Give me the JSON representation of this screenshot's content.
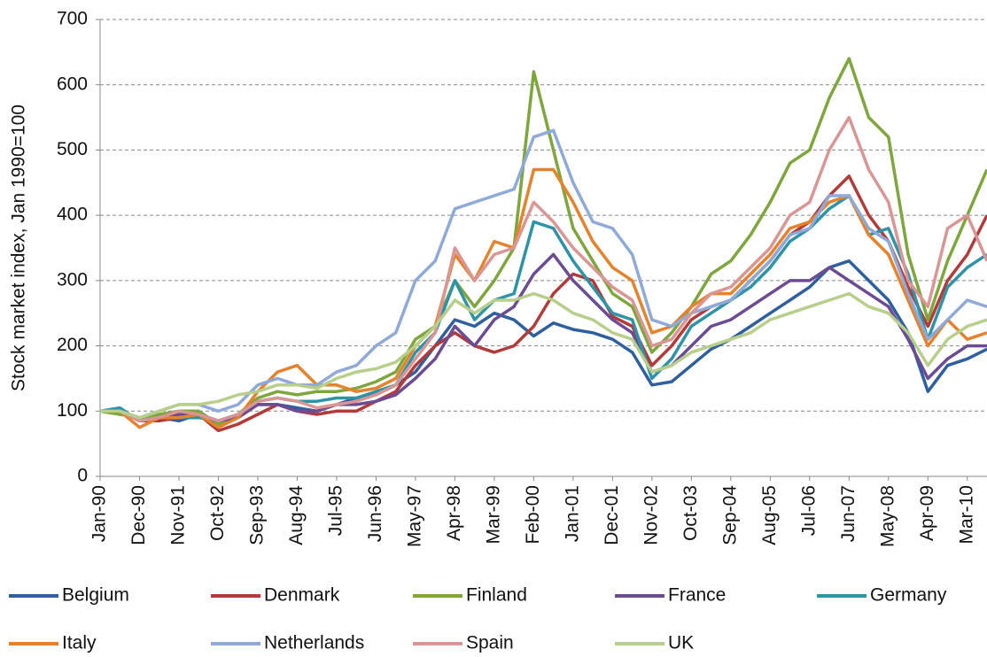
{
  "chart_data": {
    "type": "line",
    "y_label": "Stock market index, Jan 1990=100",
    "categories": [
      "Jan-90",
      null,
      "Dec-90",
      null,
      "Nov-91",
      null,
      "Oct-92",
      null,
      "Sep-93",
      null,
      "Aug-94",
      null,
      "Jul-95",
      null,
      "Jun-96",
      null,
      "May-97",
      null,
      "Apr-98",
      null,
      "Mar-99",
      null,
      "Feb-00",
      null,
      "Jan-01",
      null,
      "Dec-01",
      null,
      "Nov-02",
      null,
      "Oct-03",
      null,
      "Sep-04",
      null,
      "Aug-05",
      null,
      "Jul-06",
      null,
      "Jun-07",
      null,
      "May-08",
      null,
      "Apr-09",
      null,
      "Mar-10",
      null
    ],
    "ylim": [
      0,
      700
    ],
    "yticks": [
      0,
      100,
      200,
      300,
      400,
      500,
      600,
      700
    ],
    "grid": true,
    "legend": "bottom",
    "series": [
      {
        "name": "Belgium",
        "color": "#2f5f9f",
        "values": [
          100,
          100,
          85,
          90,
          85,
          95,
          85,
          95,
          110,
          110,
          105,
          100,
          110,
          120,
          125,
          140,
          160,
          200,
          240,
          230,
          250,
          240,
          215,
          235,
          225,
          220,
          210,
          190,
          140,
          145,
          170,
          195,
          210,
          230,
          250,
          270,
          290,
          320,
          330,
          300,
          270,
          220,
          130,
          170,
          180,
          195
        ]
      },
      {
        "name": "Denmark",
        "color": "#b23b3a",
        "values": [
          100,
          100,
          85,
          85,
          90,
          95,
          70,
          80,
          95,
          110,
          100,
          95,
          100,
          100,
          115,
          130,
          170,
          200,
          220,
          200,
          190,
          200,
          230,
          280,
          310,
          300,
          245,
          230,
          170,
          200,
          240,
          260,
          270,
          300,
          330,
          370,
          390,
          430,
          460,
          400,
          360,
          290,
          230,
          300,
          340,
          400
        ]
      },
      {
        "name": "Finland",
        "color": "#7ea63d",
        "values": [
          100,
          95,
          90,
          95,
          100,
          100,
          80,
          95,
          120,
          130,
          125,
          130,
          130,
          135,
          145,
          160,
          210,
          230,
          300,
          260,
          300,
          350,
          620,
          500,
          380,
          330,
          280,
          260,
          190,
          220,
          260,
          310,
          330,
          370,
          420,
          480,
          500,
          580,
          640,
          550,
          520,
          340,
          240,
          330,
          400,
          470
        ]
      },
      {
        "name": "France",
        "color": "#6b4c93",
        "values": [
          100,
          100,
          85,
          90,
          95,
          95,
          85,
          90,
          110,
          110,
          100,
          100,
          110,
          110,
          115,
          125,
          150,
          180,
          230,
          200,
          240,
          260,
          310,
          340,
          300,
          270,
          240,
          220,
          160,
          170,
          200,
          230,
          240,
          260,
          280,
          300,
          300,
          320,
          300,
          280,
          260,
          210,
          150,
          180,
          200,
          200
        ]
      },
      {
        "name": "Germany",
        "color": "#2f93a8",
        "values": [
          100,
          105,
          85,
          90,
          90,
          90,
          85,
          95,
          115,
          120,
          115,
          115,
          120,
          120,
          130,
          140,
          190,
          220,
          300,
          240,
          270,
          280,
          390,
          380,
          330,
          290,
          250,
          240,
          150,
          180,
          230,
          250,
          270,
          290,
          320,
          360,
          380,
          410,
          430,
          370,
          380,
          310,
          210,
          290,
          320,
          340
        ]
      },
      {
        "name": "Italy",
        "color": "#e6822c",
        "values": [
          100,
          100,
          75,
          90,
          90,
          95,
          75,
          90,
          130,
          160,
          170,
          140,
          140,
          130,
          135,
          150,
          200,
          230,
          340,
          300,
          360,
          350,
          470,
          470,
          420,
          360,
          320,
          300,
          220,
          230,
          260,
          280,
          280,
          310,
          340,
          380,
          390,
          420,
          430,
          370,
          340,
          270,
          200,
          240,
          210,
          220
        ]
      },
      {
        "name": "Netherlands",
        "color": "#8faad9",
        "values": [
          100,
          100,
          90,
          100,
          110,
          110,
          100,
          110,
          140,
          150,
          140,
          140,
          160,
          170,
          200,
          220,
          300,
          330,
          410,
          420,
          430,
          440,
          520,
          530,
          450,
          390,
          380,
          340,
          240,
          230,
          250,
          260,
          270,
          300,
          330,
          370,
          380,
          430,
          430,
          380,
          360,
          280,
          210,
          240,
          270,
          260
        ]
      },
      {
        "name": "Spain",
        "color": "#d99694",
        "values": [
          100,
          100,
          85,
          90,
          100,
          95,
          85,
          95,
          115,
          120,
          115,
          105,
          110,
          115,
          125,
          140,
          180,
          220,
          350,
          300,
          340,
          350,
          420,
          390,
          350,
          320,
          290,
          270,
          200,
          210,
          250,
          280,
          290,
          320,
          350,
          400,
          420,
          500,
          550,
          470,
          420,
          300,
          260,
          380,
          400,
          330
        ]
      },
      {
        "name": "UK",
        "color": "#b8cf8b",
        "values": [
          100,
          100,
          90,
          100,
          110,
          110,
          115,
          125,
          130,
          140,
          140,
          135,
          150,
          160,
          165,
          175,
          200,
          230,
          270,
          250,
          270,
          270,
          280,
          270,
          250,
          240,
          220,
          210,
          160,
          170,
          190,
          200,
          210,
          220,
          240,
          250,
          260,
          270,
          280,
          260,
          250,
          220,
          170,
          210,
          230,
          240
        ]
      }
    ]
  }
}
